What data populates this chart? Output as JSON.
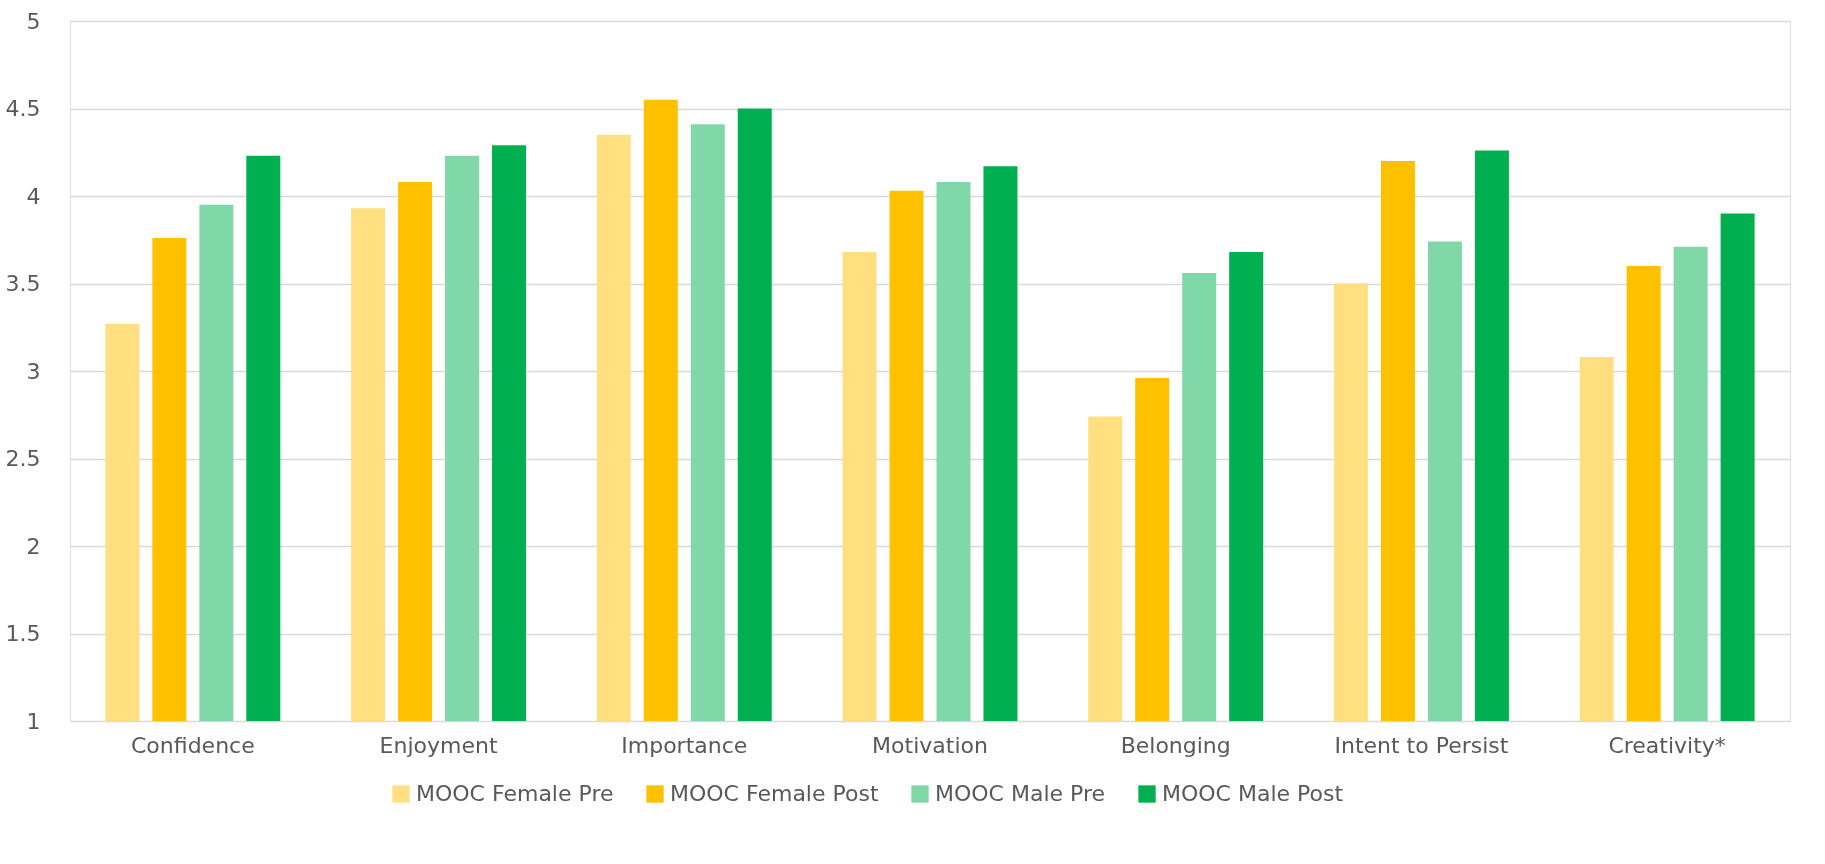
{
  "chart_data": {
    "type": "bar",
    "categories": [
      "Confidence",
      "Enjoyment",
      "Importance",
      "Motivation",
      "Belonging",
      "Intent to Persist",
      "Creativity*"
    ],
    "series": [
      {
        "name": "MOOC Female Pre",
        "color": "#ffdf80",
        "values": [
          3.27,
          3.93,
          4.35,
          3.68,
          2.74,
          3.5,
          3.08
        ]
      },
      {
        "name": "MOOC Female Post",
        "color": "#ffc000",
        "values": [
          3.76,
          4.08,
          4.55,
          4.03,
          2.96,
          4.2,
          3.6
        ]
      },
      {
        "name": "MOOC Male Pre",
        "color": "#80d7a7",
        "values": [
          3.95,
          4.23,
          4.41,
          4.08,
          3.56,
          3.74,
          3.71
        ]
      },
      {
        "name": "MOOC Male Post",
        "color": "#00b050",
        "values": [
          4.23,
          4.29,
          4.5,
          4.17,
          3.68,
          4.26,
          3.9
        ]
      }
    ],
    "ylim": [
      1,
      5
    ],
    "yticks": [
      1,
      1.5,
      2,
      2.5,
      3,
      3.5,
      4,
      4.5,
      5
    ],
    "grid": "y",
    "legend": "bottom"
  }
}
